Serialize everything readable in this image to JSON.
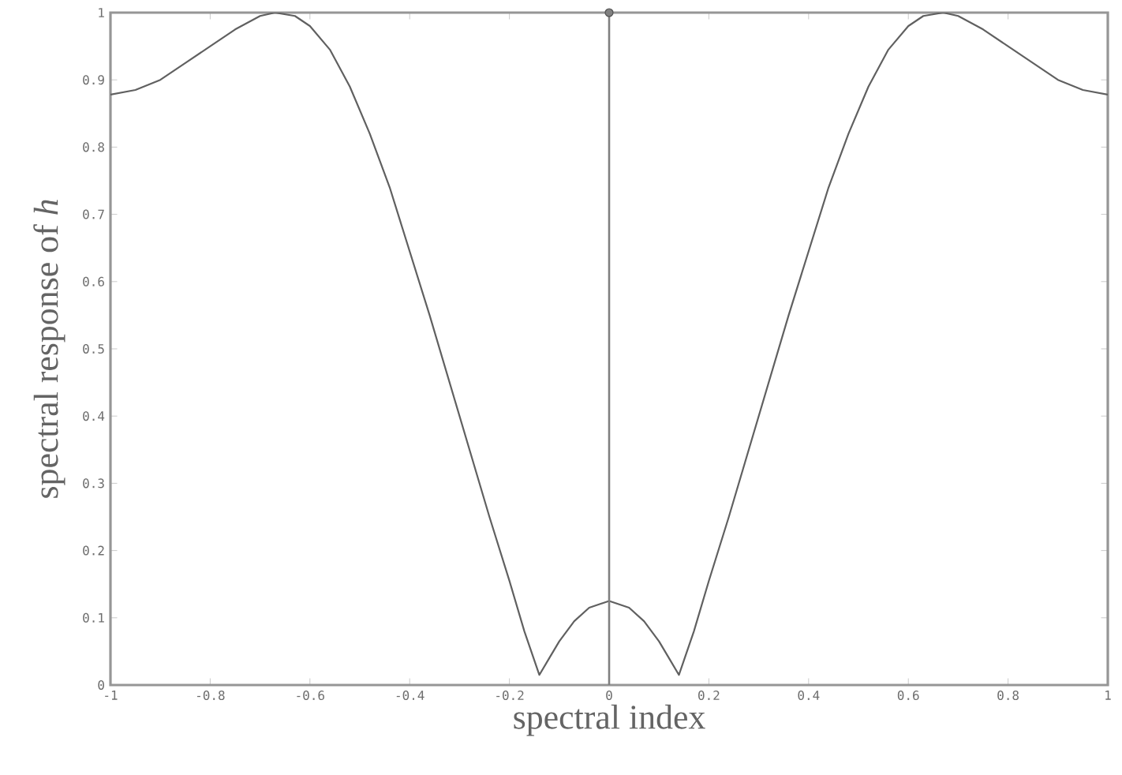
{
  "chart_data": {
    "type": "line",
    "xlabel": "spectral index",
    "ylabel": "spectral response of *h*",
    "xlim": [
      -1,
      1
    ],
    "ylim": [
      0,
      1
    ],
    "xticks": [
      -1,
      -0.8,
      -0.6,
      -0.4,
      -0.2,
      0,
      0.2,
      0.4,
      0.6,
      0.8,
      1
    ],
    "yticks": [
      0,
      0.1,
      0.2,
      0.3,
      0.4,
      0.5,
      0.6,
      0.7,
      0.8,
      0.9,
      1
    ],
    "marker": "none",
    "line_style": "solid",
    "series": [
      {
        "color": "#606060",
        "x": [
          -1,
          -0.95,
          -0.9,
          -0.85,
          -0.8,
          -0.75,
          -0.7,
          -0.67,
          -0.63,
          -0.6,
          -0.56,
          -0.52,
          -0.48,
          -0.44,
          -0.4,
          -0.36,
          -0.32,
          -0.28,
          -0.24,
          -0.2,
          -0.17,
          -0.14,
          -0.12,
          -0.1,
          -0.07,
          -0.04,
          0,
          0.04,
          0.07,
          0.1,
          0.12,
          0.14,
          0.17,
          0.2,
          0.24,
          0.28,
          0.32,
          0.36,
          0.4,
          0.44,
          0.48,
          0.52,
          0.56,
          0.6,
          0.63,
          0.67,
          0.7,
          0.75,
          0.8,
          0.85,
          0.9,
          0.95,
          1
        ],
        "values": [
          0.878,
          0.885,
          0.9,
          0.925,
          0.95,
          0.975,
          0.995,
          1.0,
          0.995,
          0.98,
          0.945,
          0.89,
          0.82,
          0.74,
          0.645,
          0.55,
          0.45,
          0.35,
          0.25,
          0.155,
          0.08,
          0.015,
          0.04,
          0.065,
          0.095,
          0.115,
          0.125,
          0.115,
          0.095,
          0.065,
          0.04,
          0.015,
          0.08,
          0.155,
          0.25,
          0.35,
          0.45,
          0.55,
          0.645,
          0.74,
          0.82,
          0.89,
          0.945,
          0.98,
          0.995,
          1.0,
          0.995,
          0.975,
          0.95,
          0.925,
          0.9,
          0.885,
          0.878
        ]
      },
      {
        "type": "lollipop",
        "color": "#808080",
        "marker": "circle",
        "x": [
          0
        ],
        "values": [
          1
        ]
      }
    ]
  }
}
